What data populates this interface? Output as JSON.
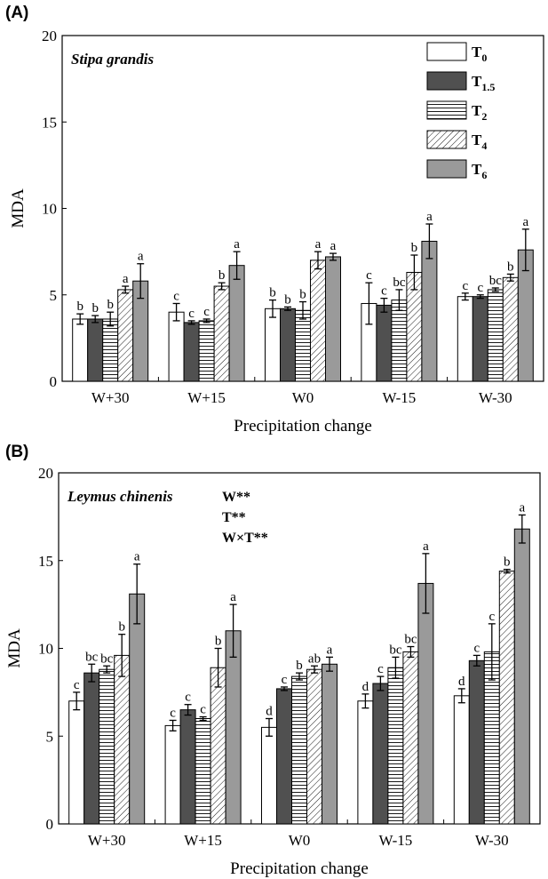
{
  "figure": {
    "panel_a_label": "(A)",
    "panel_b_label": "(B)"
  },
  "colors": {
    "T0": "#ffffff",
    "T1.5": "#505050",
    "T2": "#ffffff",
    "T4": "#ffffff",
    "T6": "#9a9a9a"
  },
  "chart_data": [
    {
      "type": "bar",
      "title": "Stipa grandis",
      "xlabel": "Precipitation change",
      "ylabel": "MDA",
      "ylim": [
        0,
        20
      ],
      "yticks": [
        "0",
        "5",
        "10",
        "15",
        "20"
      ],
      "categories": [
        "W+30",
        "W+15",
        "W0",
        "W-15",
        "W-30"
      ],
      "legend": {
        "placement": "top-right",
        "entries": [
          {
            "base": "T",
            "sub": "0",
            "pattern": "white"
          },
          {
            "base": "T",
            "sub": "1.5",
            "pattern": "dark"
          },
          {
            "base": "T",
            "sub": "2",
            "pattern": "hlines"
          },
          {
            "base": "T",
            "sub": "4",
            "pattern": "diag"
          },
          {
            "base": "T",
            "sub": "6",
            "pattern": "gray"
          }
        ]
      },
      "series": [
        {
          "name": "T0",
          "values": [
            3.6,
            4.0,
            4.2,
            4.5,
            4.9
          ],
          "errors": [
            0.3,
            0.5,
            0.5,
            1.2,
            0.2
          ],
          "letters": [
            "b",
            "c",
            "b",
            "c",
            "c"
          ]
        },
        {
          "name": "T1.5",
          "values": [
            3.6,
            3.4,
            4.2,
            4.4,
            4.9
          ],
          "errors": [
            0.2,
            0.1,
            0.1,
            0.4,
            0.1
          ],
          "letters": [
            "b",
            "c",
            "b",
            "c",
            "c"
          ]
        },
        {
          "name": "T2",
          "values": [
            3.6,
            3.5,
            4.1,
            4.7,
            5.3
          ],
          "errors": [
            0.4,
            0.1,
            0.5,
            0.6,
            0.1
          ],
          "letters": [
            "b",
            "c",
            "b",
            "bc",
            "bc"
          ]
        },
        {
          "name": "T4",
          "values": [
            5.3,
            5.5,
            7.0,
            6.3,
            6.0
          ],
          "errors": [
            0.2,
            0.2,
            0.5,
            1.0,
            0.2
          ],
          "letters": [
            "a",
            "b",
            "a",
            "b",
            "b"
          ]
        },
        {
          "name": "T6",
          "values": [
            5.8,
            6.7,
            7.2,
            8.1,
            7.6
          ],
          "errors": [
            1.0,
            0.8,
            0.2,
            1.0,
            1.2
          ],
          "letters": [
            "a",
            "a",
            "a",
            "a",
            "a"
          ]
        }
      ]
    },
    {
      "type": "bar",
      "title": "Leymus chinenis",
      "annotations": [
        "W**",
        "T**",
        "W×T**"
      ],
      "xlabel": "Precipitation change",
      "ylabel": "MDA",
      "ylim": [
        0,
        20
      ],
      "yticks": [
        "0",
        "5",
        "10",
        "15",
        "20"
      ],
      "categories": [
        "W+30",
        "W+15",
        "W0",
        "W-15",
        "W-30"
      ],
      "series": [
        {
          "name": "T0",
          "values": [
            7.0,
            5.6,
            5.5,
            7.0,
            7.3
          ],
          "errors": [
            0.5,
            0.3,
            0.5,
            0.4,
            0.4
          ],
          "letters": [
            "c",
            "c",
            "d",
            "d",
            "d"
          ]
        },
        {
          "name": "T1.5",
          "values": [
            8.6,
            6.5,
            7.7,
            8.0,
            9.3
          ],
          "errors": [
            0.5,
            0.3,
            0.1,
            0.4,
            0.3
          ],
          "letters": [
            "bc",
            "c",
            "c",
            "c",
            "c"
          ]
        },
        {
          "name": "T2",
          "values": [
            8.8,
            6.0,
            8.4,
            8.9,
            9.8
          ],
          "errors": [
            0.2,
            0.1,
            0.2,
            0.6,
            1.6
          ],
          "letters": [
            "bc",
            "c",
            "b",
            "bc",
            "c"
          ]
        },
        {
          "name": "T4",
          "values": [
            9.6,
            8.9,
            8.8,
            9.8,
            14.4
          ],
          "errors": [
            1.2,
            1.1,
            0.2,
            0.3,
            0.1
          ],
          "letters": [
            "b",
            "b",
            "ab",
            "bc",
            "b"
          ]
        },
        {
          "name": "T6",
          "values": [
            13.1,
            11.0,
            9.1,
            13.7,
            16.8
          ],
          "errors": [
            1.7,
            1.5,
            0.4,
            1.7,
            0.8
          ],
          "letters": [
            "a",
            "a",
            "a",
            "a",
            "a"
          ]
        }
      ]
    }
  ]
}
